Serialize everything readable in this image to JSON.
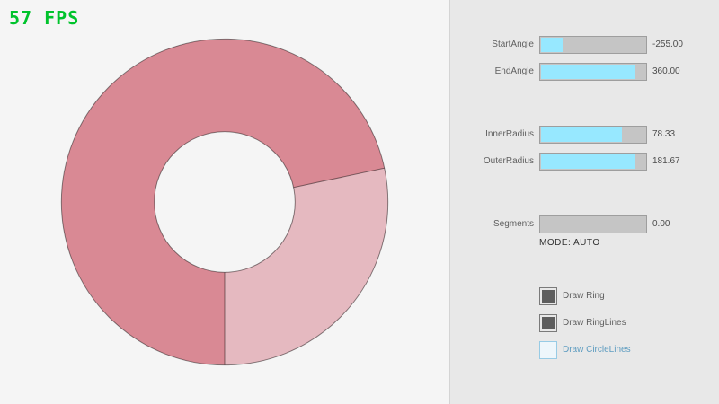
{
  "fps_label": "57 FPS",
  "panel": {
    "sliders": [
      {
        "label": "StartAngle",
        "value": "-255.00",
        "fill_pct": 21.7
      },
      {
        "label": "EndAngle",
        "value": "360.00",
        "fill_pct": 90.0
      },
      {
        "label": "InnerRadius",
        "value": "78.33",
        "fill_pct": 78.3
      },
      {
        "label": "OuterRadius",
        "value": "181.67",
        "fill_pct": 90.8
      },
      {
        "label": "Segments",
        "value": "0.00",
        "fill_pct": 0
      }
    ],
    "mode_label": "MODE: AUTO",
    "checkboxes": [
      {
        "label": "Draw Ring",
        "checked": true
      },
      {
        "label": "Draw RingLines",
        "checked": true
      },
      {
        "label": "Draw CircleLines",
        "checked": false
      }
    ]
  },
  "colors": {
    "fps_green": "#00c32c",
    "ring_dark": "#d98994",
    "ring_light": "#e5b9c0",
    "slider_fill_cyan": "#97e8ff",
    "panel_bg": "#e8e8e8",
    "canvas_bg": "#f5f5f5"
  }
}
